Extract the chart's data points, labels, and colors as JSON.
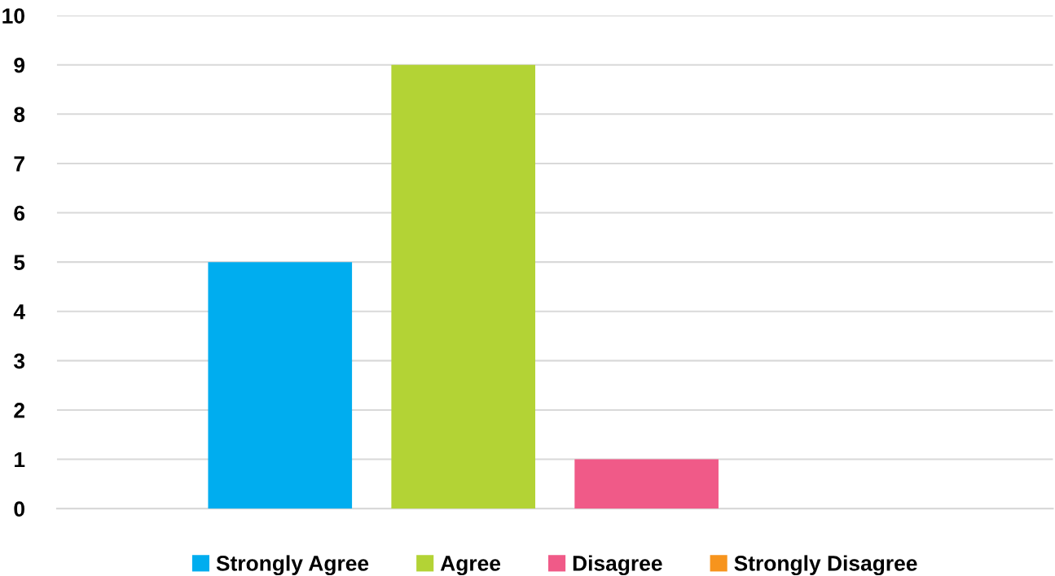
{
  "chart_data": {
    "type": "bar",
    "categories": [
      null
    ],
    "series": [
      {
        "name": "Strongly Agree",
        "color": "#00adef",
        "values": [
          5
        ]
      },
      {
        "name": "Agree",
        "color": "#b3d335",
        "values": [
          9
        ]
      },
      {
        "name": "Disagree",
        "color": "#f05a88",
        "values": [
          1
        ]
      },
      {
        "name": "Strongly Disagree",
        "color": "#f7941d",
        "values": [
          0
        ]
      }
    ],
    "ylim": [
      0,
      10
    ],
    "yticks": [
      0,
      1,
      2,
      3,
      4,
      5,
      6,
      7,
      8,
      9,
      10
    ],
    "grid": "y",
    "legend": "bottom",
    "tick_labels": "y"
  }
}
